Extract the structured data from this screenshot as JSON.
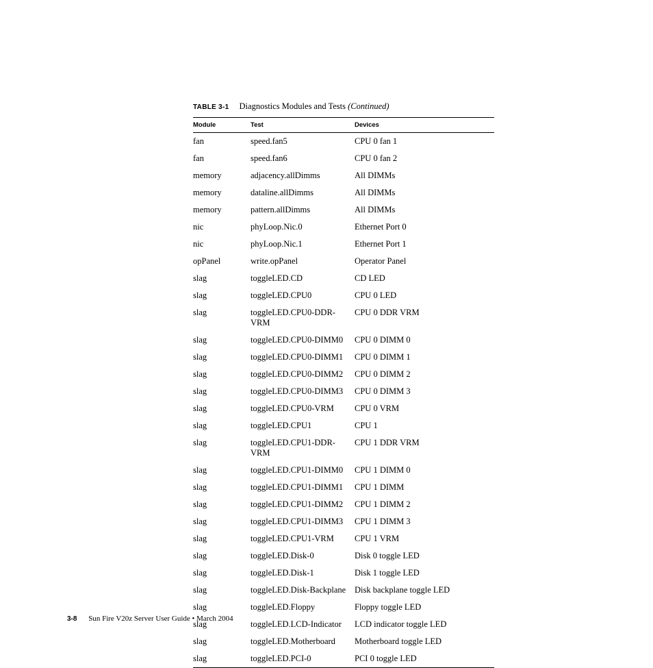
{
  "caption": {
    "label": "TABLE 3-1",
    "title": "Diagnostics Modules and Tests",
    "suffix": "(Continued)"
  },
  "columns": {
    "module": "Module",
    "test": "Test",
    "devices": "Devices"
  },
  "rows": [
    {
      "module": "fan",
      "test": "speed.fan5",
      "devices": "CPU 0 fan 1"
    },
    {
      "module": "fan",
      "test": "speed.fan6",
      "devices": "CPU 0 fan 2"
    },
    {
      "module": "memory",
      "test": "adjacency.allDimms",
      "devices": "All DIMMs"
    },
    {
      "module": "memory",
      "test": "dataline.allDimms",
      "devices": "All DIMMs"
    },
    {
      "module": "memory",
      "test": "pattern.allDimms",
      "devices": "All DIMMs"
    },
    {
      "module": "nic",
      "test": "phyLoop.Nic.0",
      "devices": "Ethernet Port 0"
    },
    {
      "module": "nic",
      "test": "phyLoop.Nic.1",
      "devices": "Ethernet Port 1"
    },
    {
      "module": "opPanel",
      "test": "write.opPanel",
      "devices": "Operator Panel"
    },
    {
      "module": "slag",
      "test": "toggleLED.CD",
      "devices": "CD LED"
    },
    {
      "module": "slag",
      "test": "toggleLED.CPU0",
      "devices": "CPU 0 LED"
    },
    {
      "module": "slag",
      "test": "toggleLED.CPU0-DDR-VRM",
      "devices": "CPU 0 DDR VRM"
    },
    {
      "module": "slag",
      "test": "toggleLED.CPU0-DIMM0",
      "devices": "CPU 0 DIMM 0"
    },
    {
      "module": "slag",
      "test": "toggleLED.CPU0-DIMM1",
      "devices": "CPU 0 DIMM 1"
    },
    {
      "module": "slag",
      "test": "toggleLED.CPU0-DIMM2",
      "devices": "CPU 0 DIMM 2"
    },
    {
      "module": "slag",
      "test": "toggleLED.CPU0-DIMM3",
      "devices": "CPU 0 DIMM 3"
    },
    {
      "module": "slag",
      "test": "toggleLED.CPU0-VRM",
      "devices": "CPU 0 VRM"
    },
    {
      "module": "slag",
      "test": "toggleLED.CPU1",
      "devices": "CPU 1"
    },
    {
      "module": "slag",
      "test": "toggleLED.CPU1-DDR-VRM",
      "devices": "CPU 1 DDR VRM"
    },
    {
      "module": "slag",
      "test": "toggleLED.CPU1-DIMM0",
      "devices": "CPU 1 DIMM 0"
    },
    {
      "module": "slag",
      "test": "toggleLED.CPU1-DIMM1",
      "devices": "CPU 1 DIMM"
    },
    {
      "module": "slag",
      "test": "toggleLED.CPU1-DIMM2",
      "devices": "CPU 1 DIMM 2"
    },
    {
      "module": "slag",
      "test": "toggleLED.CPU1-DIMM3",
      "devices": "CPU 1 DIMM 3"
    },
    {
      "module": "slag",
      "test": "toggleLED.CPU1-VRM",
      "devices": "CPU 1 VRM"
    },
    {
      "module": "slag",
      "test": "toggleLED.Disk-0",
      "devices": "Disk 0 toggle LED"
    },
    {
      "module": "slag",
      "test": "toggleLED.Disk-1",
      "devices": "Disk 1 toggle LED"
    },
    {
      "module": "slag",
      "test": "toggleLED.Disk-Backplane",
      "devices": "Disk backplane toggle LED"
    },
    {
      "module": "slag",
      "test": "toggleLED.Floppy",
      "devices": "Floppy toggle LED"
    },
    {
      "module": "slag",
      "test": "toggleLED.LCD-Indicator",
      "devices": "LCD indicator toggle LED"
    },
    {
      "module": "slag",
      "test": "toggleLED.Motherboard",
      "devices": "Motherboard toggle LED"
    },
    {
      "module": "slag",
      "test": "toggleLED.PCI-0",
      "devices": "PCI 0 toggle LED"
    }
  ],
  "footer": {
    "page": "3-8",
    "text": "Sun Fire V20z Server User Guide • March 2004"
  }
}
